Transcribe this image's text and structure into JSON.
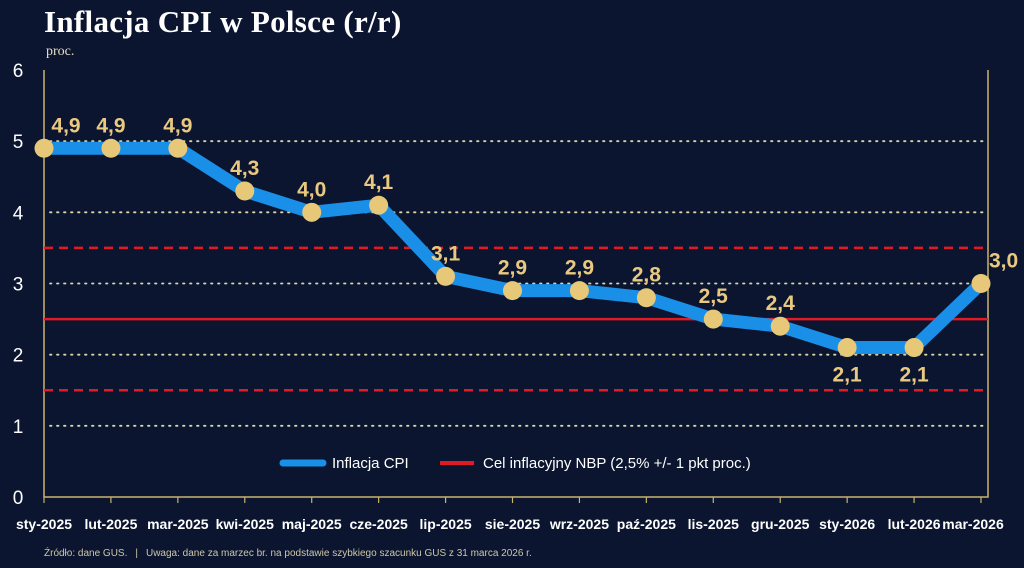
{
  "page": {
    "title": "Inflacja CPI w Polsce (r/r)",
    "unit": "proc.",
    "footer_source": "Źródło: dane GUS.",
    "footer_separator": "|",
    "footer_note": "Uwaga: dane za marzec br. na podstawie szybkiego szacunku GUS z 31 marca 2026 r."
  },
  "colors": {
    "background": "#0b1530",
    "frame": "#c9b36f",
    "series_line": "#1a8fe8",
    "marker": "#e6c878",
    "target_line": "#e01b24",
    "grid_dots": "#d8d6a8"
  },
  "chart_data": {
    "type": "line",
    "title": "Inflacja CPI w Polsce (r/r)",
    "ylabel": "proc.",
    "xlabel": "",
    "ylim": [
      0,
      6
    ],
    "yticks": [
      0,
      1,
      2,
      3,
      4,
      5,
      6
    ],
    "grid": "dotted horizontal at 1, 2, 3, 4, 5",
    "categories": [
      "sty-2025",
      "lut-2025",
      "mar-2025",
      "kwi-2025",
      "maj-2025",
      "cze-2025",
      "lip-2025",
      "sie-2025",
      "wrz-2025",
      "paź-2025",
      "lis-2025",
      "gru-2025",
      "sty-2026",
      "lut-2026",
      "mar-2026"
    ],
    "series": [
      {
        "name": "Inflacja CPI",
        "values": [
          4.9,
          4.9,
          4.9,
          4.3,
          4.0,
          4.1,
          3.1,
          2.9,
          2.9,
          2.8,
          2.5,
          2.4,
          2.1,
          2.1,
          3.0
        ],
        "labels": [
          "4,9",
          "4,9",
          "4,9",
          "4,3",
          "4,0",
          "4,1",
          "3,1",
          "2,9",
          "2,9",
          "2,8",
          "2,5",
          "2,4",
          "2,1",
          "2,1",
          "3,0"
        ],
        "label_positions": [
          "above",
          "above",
          "above",
          "above",
          "above",
          "above",
          "above",
          "above",
          "above",
          "above",
          "above",
          "above",
          "below",
          "below",
          "above"
        ]
      }
    ],
    "reference_lines": [
      {
        "name": "Cel inflacyjny NBP (2,5% +/- 1 pkt proc.)",
        "value": 2.5,
        "style": "solid"
      },
      {
        "name": "upper band",
        "value": 3.5,
        "style": "dashed"
      },
      {
        "name": "lower band",
        "value": 1.5,
        "style": "dashed"
      }
    ],
    "legend": [
      {
        "label": "Inflacja CPI",
        "kind": "series"
      },
      {
        "label": "Cel inflacyjny NBP (2,5% +/- 1 pkt proc.)",
        "kind": "reference"
      }
    ],
    "legend_position": "bottom-center"
  }
}
